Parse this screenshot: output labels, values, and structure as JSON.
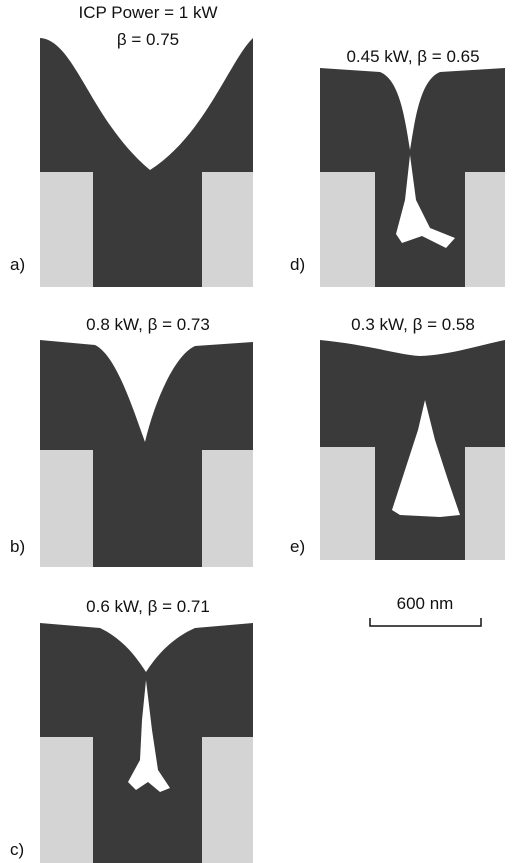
{
  "panels": [
    {
      "label": "a)",
      "title": [
        "ICP Power = 1 kW",
        "β = 0.75"
      ]
    },
    {
      "label": "d)",
      "title": [
        "0.45 kW, β = 0.65"
      ]
    },
    {
      "label": "b)",
      "title": [
        "0.8 kW, β = 0.73"
      ]
    },
    {
      "label": "e)",
      "title": [
        "0.3 kW, β = 0.58"
      ]
    },
    {
      "label": "c)",
      "title": [
        "0.6 kW, β = 0.71"
      ]
    }
  ],
  "scale_bar": {
    "label": "600 nm"
  }
}
